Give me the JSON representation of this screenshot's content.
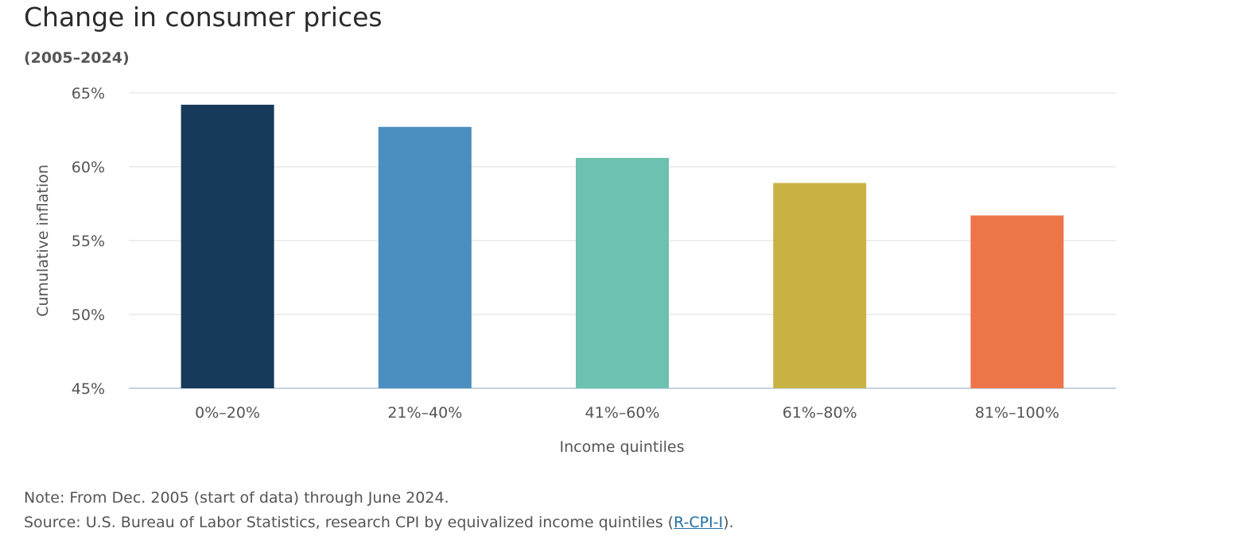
{
  "header": {
    "title": "Change in consumer prices",
    "subtitle": "(2005–2024)"
  },
  "chart_data": {
    "type": "bar",
    "title": "Change in consumer prices",
    "subtitle": "(2005–2024)",
    "xlabel": "Income quintiles",
    "ylabel": "Cumulative inflation",
    "categories": [
      "0%–20%",
      "21%–40%",
      "41%–60%",
      "61%–80%",
      "81%–100%"
    ],
    "values": [
      64.2,
      62.7,
      60.6,
      58.9,
      56.7
    ],
    "colors": [
      "#183a5a",
      "#4a8fc0",
      "#6cc1b1",
      "#c8b244",
      "#ed754a"
    ],
    "ylim": [
      45,
      65
    ],
    "yticks": [
      45,
      50,
      55,
      60,
      65
    ],
    "ytick_labels": [
      "45%",
      "50%",
      "55%",
      "60%",
      "65%"
    ],
    "grid": true,
    "legend": "none"
  },
  "footer": {
    "note": "Note: From Dec. 2005 (start of data) through June 2024.",
    "source_prefix": "Source: U.S. Bureau of Labor Statistics, research CPI by equivalized income quintiles (",
    "source_link": "R-CPI-I",
    "source_suffix": ")."
  }
}
